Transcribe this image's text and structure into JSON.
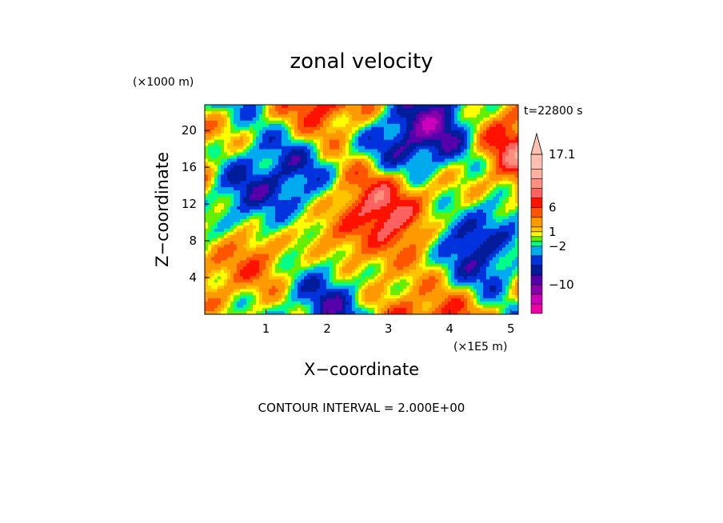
{
  "chart_data": {
    "type": "heatmap",
    "title": "zonal velocity",
    "xlabel": "X−coordinate",
    "ylabel": "Z−coordinate",
    "x_unit": "(×1E5 m)",
    "y_unit": "(×1000 m)",
    "time_label": "t=22800 s",
    "contour_note": "CONTOUR INTERVAL = 2.000E+00",
    "xlim": [
      0,
      5.12
    ],
    "ylim": [
      0,
      22.8
    ],
    "x_ticks": [
      1,
      2,
      3,
      4,
      5
    ],
    "y_ticks": [
      4,
      8,
      12,
      16,
      20
    ],
    "colorbar": {
      "levels": [
        -16,
        -14,
        -12,
        -10,
        -8,
        -6,
        -4,
        -2,
        -1,
        0,
        1,
        2,
        4,
        6,
        8,
        10,
        12,
        14,
        17.1
      ],
      "colors": [
        "#ee00a8",
        "#cc00bb",
        "#8800aa",
        "#5500aa",
        "#001c9a",
        "#0033dd",
        "#00aaee",
        "#00ff88",
        "#66ee00",
        "#ffff00",
        "#ffc400",
        "#ff9900",
        "#ff5500",
        "#ff1100",
        "#ff6060",
        "#ff9080",
        "#ffb0a0",
        "#ffc0b0"
      ],
      "tick_labels": [
        {
          "value": 17.1,
          "label": "17.1"
        },
        {
          "value": 6,
          "label": "6"
        },
        {
          "value": 1,
          "label": "1"
        },
        {
          "value": -2,
          "label": "−2"
        },
        {
          "value": -10,
          "label": "−10"
        }
      ]
    }
  }
}
